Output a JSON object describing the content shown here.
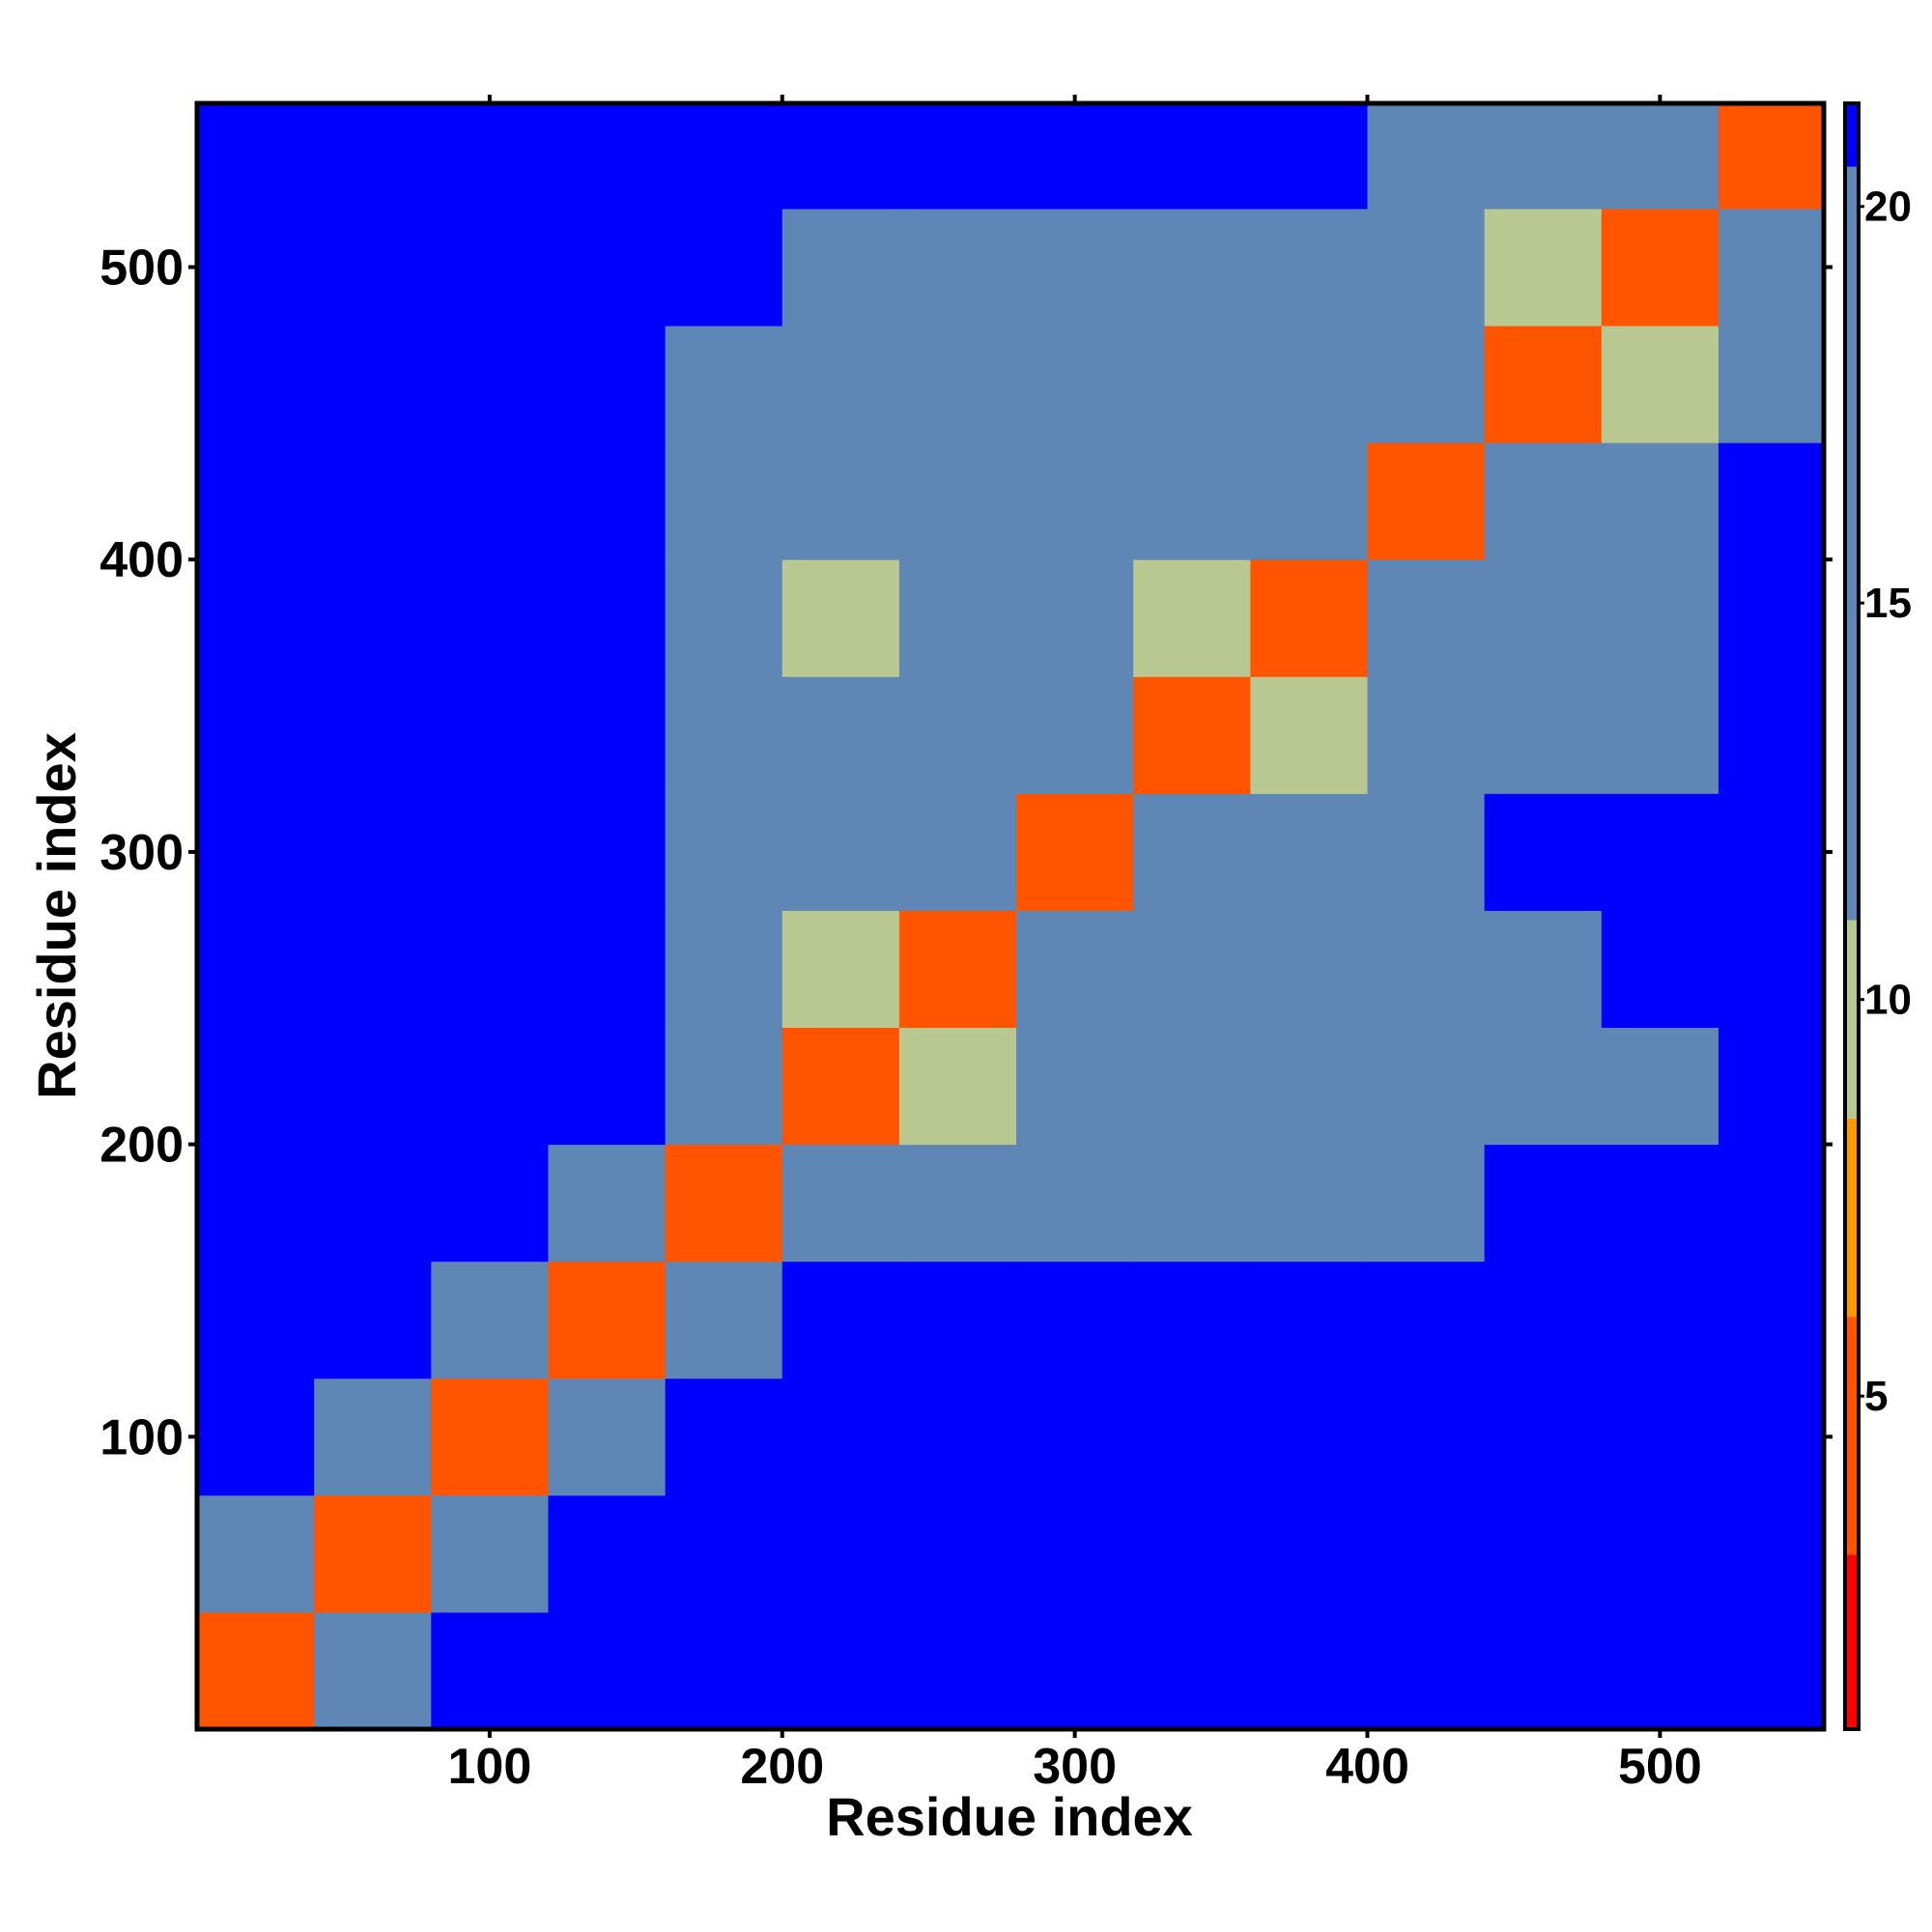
{
  "chart_data": {
    "type": "heatmap",
    "xlabel": "Residue index",
    "ylabel": "Residue index",
    "bins": [
      0,
      40,
      80,
      120,
      160,
      200,
      240,
      280,
      320,
      360,
      400,
      440,
      480,
      520,
      556
    ],
    "xlim": [
      0,
      556
    ],
    "ylim": [
      0,
      556
    ],
    "xticks": [
      100,
      200,
      300,
      400,
      500
    ],
    "yticks": [
      100,
      200,
      300,
      400,
      500
    ],
    "clim": [
      0.8,
      21.3
    ],
    "cticks": [
      5,
      10,
      15,
      20
    ],
    "colorscale": [
      {
        "value": 3,
        "color": "#ff0000"
      },
      {
        "value": 6,
        "color": "#ff5500"
      },
      {
        "value": 8.5,
        "color": "#ff9900"
      },
      {
        "value": 11,
        "color": "#b8c890"
      },
      {
        "value": 20.5,
        "color": "#5f87b5"
      },
      {
        "value": 21.3,
        "color": "#0000ff"
      }
    ],
    "z": [
      [
        3.8,
        20,
        21,
        21,
        21,
        21,
        21,
        21,
        21,
        21,
        21,
        21,
        21,
        21
      ],
      [
        20,
        3.8,
        20,
        21,
        21,
        21,
        21,
        21,
        21,
        21,
        21,
        21,
        21,
        21
      ],
      [
        21,
        20,
        3.8,
        20,
        21,
        21,
        21,
        21,
        21,
        21,
        21,
        21,
        21,
        21
      ],
      [
        21,
        21,
        20,
        3.8,
        19,
        21,
        21,
        21,
        21,
        21,
        21,
        21,
        21,
        21
      ],
      [
        21,
        21,
        21,
        19,
        5,
        13,
        17,
        17,
        16,
        18,
        20,
        21,
        21,
        21
      ],
      [
        21,
        21,
        21,
        21,
        12,
        5,
        11,
        16,
        14,
        17,
        19,
        19,
        20,
        21
      ],
      [
        21,
        21,
        21,
        21,
        17,
        11,
        5,
        12,
        17,
        19,
        20,
        20,
        21,
        21
      ],
      [
        21,
        21,
        21,
        21,
        17,
        16,
        12,
        5,
        12,
        17,
        19,
        21,
        21,
        21
      ],
      [
        21,
        21,
        21,
        21,
        13,
        14,
        18,
        12,
        5,
        10,
        19,
        17,
        18,
        21
      ],
      [
        21,
        21,
        21,
        21,
        17,
        10,
        18,
        16,
        10,
        5,
        16,
        17,
        19,
        21
      ],
      [
        21,
        21,
        21,
        21,
        19,
        19,
        19,
        17,
        18,
        17,
        5,
        12,
        14,
        21
      ],
      [
        21,
        21,
        21,
        21,
        20,
        18,
        19,
        17,
        16,
        17,
        12,
        5,
        11,
        19
      ],
      [
        21,
        21,
        21,
        21,
        21,
        20,
        20,
        19,
        18,
        19,
        13,
        11,
        5,
        14
      ],
      [
        21,
        21,
        21,
        21,
        21,
        21,
        21,
        21,
        21,
        21,
        20,
        19,
        14,
        5
      ]
    ]
  }
}
